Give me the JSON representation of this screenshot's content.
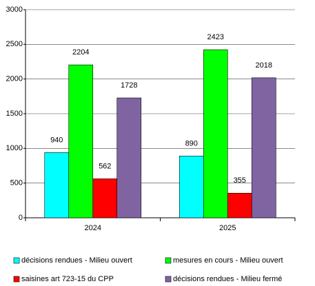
{
  "chart_data": {
    "type": "bar",
    "categories": [
      "2024",
      "2025"
    ],
    "series": [
      {
        "name": "décisions rendues - Milieu ouvert",
        "color": "#00ffff",
        "values": [
          940,
          890
        ]
      },
      {
        "name": "mesures en cours - Milieu ouvert",
        "color": "#00ff00",
        "values": [
          2204,
          2423
        ]
      },
      {
        "name": "saisines art 723-15 du CPP",
        "color": "#ff0000",
        "values": [
          562,
          355
        ]
      },
      {
        "name": "décisions rendues - Milieu fermé",
        "color": "#8064a2",
        "values": [
          1728,
          2018
        ]
      }
    ],
    "ylim": [
      0,
      3000
    ],
    "yticks": [
      0,
      500,
      1000,
      1500,
      2000,
      2500,
      3000
    ],
    "grid": true,
    "legend": "bottom"
  }
}
